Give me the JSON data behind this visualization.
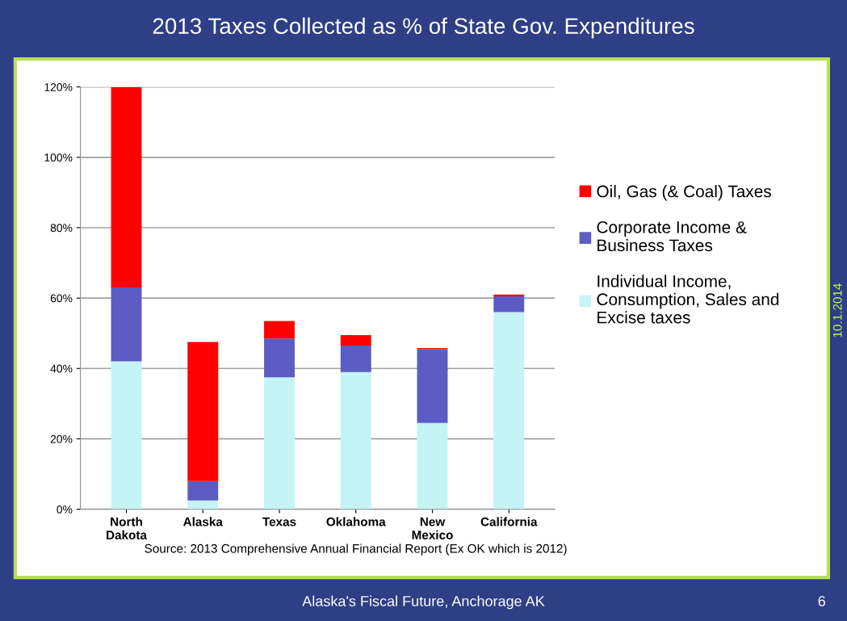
{
  "chart_data": {
    "type": "bar",
    "title": "2013 Taxes Collected as % of State Gov. Expenditures",
    "stacked": true,
    "categories": [
      "North\nDakota",
      "Alaska",
      "Texas",
      "Oklahoma",
      "New\nMexico",
      "California"
    ],
    "series": [
      {
        "name": "Individual Income,\nConsumption, Sales and\nExcise taxes",
        "color": "#c4f4f6",
        "values": [
          42,
          2.5,
          37.5,
          39,
          24.5,
          56
        ]
      },
      {
        "name": "Corporate Income &\nBusiness Taxes",
        "color": "#5c5cc4",
        "values": [
          21,
          5.5,
          11,
          7.5,
          21,
          4.5
        ]
      },
      {
        "name": "Oil, Gas (& Coal) Taxes",
        "color": "#ff0000",
        "values": [
          57,
          39.5,
          5,
          3,
          0.3,
          0.5
        ]
      }
    ],
    "ylim": [
      0,
      120
    ],
    "yticks": [
      {
        "value": 0,
        "label": "0%"
      },
      {
        "value": 20,
        "label": "20%"
      },
      {
        "value": 40,
        "label": "40%"
      },
      {
        "value": 60,
        "label": "60%"
      },
      {
        "value": 80,
        "label": "80%"
      },
      {
        "value": 100,
        "label": "100%"
      },
      {
        "value": 120,
        "label": "120%"
      }
    ],
    "grid": "y",
    "legend": "right",
    "annotations": [
      "Source: 2013 Comprehensive Annual Financial Report (Ex OK which is 2012)",
      "Alaska's Fiscal Future, Anchorage AK",
      "6",
      "10.1.2014"
    ]
  }
}
